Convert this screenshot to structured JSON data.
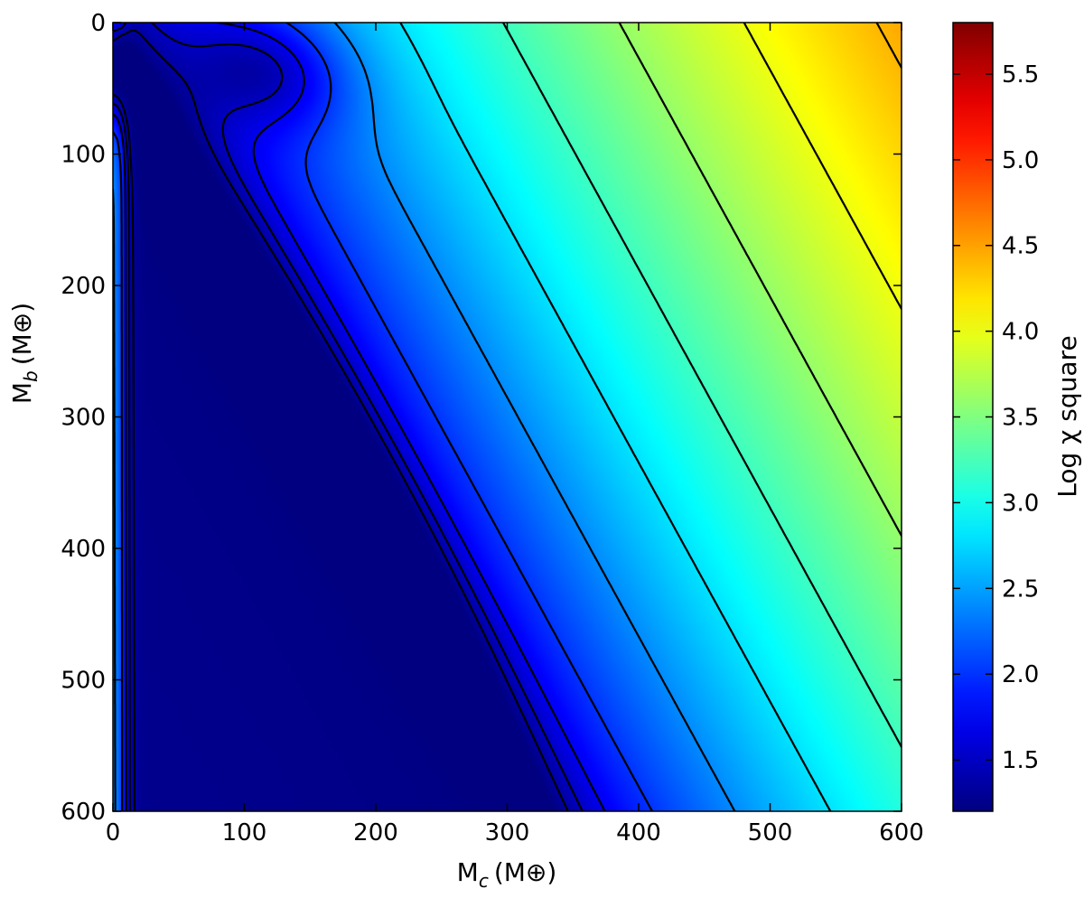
{
  "chart_data": {
    "type": "heatmap",
    "title": "",
    "xlabel": "M",
    "xlabel_sub": "c",
    "xlabel_unit": "(M⊕)",
    "ylabel": "M",
    "ylabel_sub": "b",
    "ylabel_unit": "(M⊕)",
    "colorbar_label": "Log χ square",
    "colormap": "jet",
    "xlim": [
      0,
      600
    ],
    "ylim": [
      600,
      0
    ],
    "x_ticks": [
      0,
      100,
      200,
      300,
      400,
      500,
      600
    ],
    "y_ticks": [
      0,
      100,
      200,
      300,
      400,
      500,
      600
    ],
    "x_tick_labels": [
      "0",
      "100",
      "200",
      "300",
      "400",
      "500",
      "600"
    ],
    "y_tick_labels": [
      "0",
      "100",
      "200",
      "300",
      "400",
      "500",
      "600"
    ],
    "color_range": [
      1.2,
      5.8
    ],
    "colorbar_ticks": [
      1.5,
      2.0,
      2.5,
      3.0,
      3.5,
      4.0,
      4.5,
      5.0,
      5.5
    ],
    "colorbar_tick_labels": [
      "1.5",
      "2.0",
      "2.5",
      "3.0",
      "3.5",
      "4.0",
      "4.5",
      "5.0",
      "5.5"
    ],
    "contour_levels": [
      1.35,
      1.5,
      1.7,
      2.0,
      2.4,
      2.8,
      3.2,
      3.6,
      4.0,
      4.4,
      4.8,
      5.2
    ]
  }
}
